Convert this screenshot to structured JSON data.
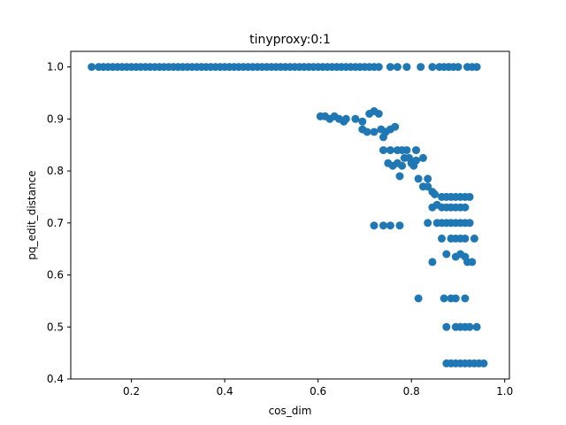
{
  "chart_data": {
    "type": "scatter",
    "title": "tinyproxy:0:1",
    "xlabel": "cos_dim",
    "ylabel": "pq_edit_distance",
    "xlim": [
      0.07,
      1.01
    ],
    "ylim": [
      0.4,
      1.03
    ],
    "xticks": [
      0.2,
      0.4,
      0.6,
      0.8,
      1.0
    ],
    "xtick_labels": [
      "0.2",
      "0.4",
      "0.6",
      "0.8",
      "1.0"
    ],
    "yticks": [
      0.4,
      0.5,
      0.6,
      0.7,
      0.8,
      0.9,
      1.0
    ],
    "ytick_labels": [
      "0.4",
      "0.5",
      "0.6",
      "0.7",
      "0.8",
      "0.9",
      "1.0"
    ],
    "grid": false,
    "legend": false,
    "marker_color": "#1f77b4",
    "series": [
      {
        "points": [
          [
            0.115,
            1.0
          ],
          [
            0.13,
            1.0
          ],
          [
            0.14,
            1.0
          ],
          [
            0.15,
            1.0
          ],
          [
            0.16,
            1.0
          ],
          [
            0.17,
            1.0
          ],
          [
            0.18,
            1.0
          ],
          [
            0.19,
            1.0
          ],
          [
            0.2,
            1.0
          ],
          [
            0.21,
            1.0
          ],
          [
            0.22,
            1.0
          ],
          [
            0.23,
            1.0
          ],
          [
            0.24,
            1.0
          ],
          [
            0.25,
            1.0
          ],
          [
            0.26,
            1.0
          ],
          [
            0.27,
            1.0
          ],
          [
            0.28,
            1.0
          ],
          [
            0.29,
            1.0
          ],
          [
            0.3,
            1.0
          ],
          [
            0.31,
            1.0
          ],
          [
            0.32,
            1.0
          ],
          [
            0.33,
            1.0
          ],
          [
            0.34,
            1.0
          ],
          [
            0.35,
            1.0
          ],
          [
            0.36,
            1.0
          ],
          [
            0.37,
            1.0
          ],
          [
            0.38,
            1.0
          ],
          [
            0.39,
            1.0
          ],
          [
            0.4,
            1.0
          ],
          [
            0.41,
            1.0
          ],
          [
            0.42,
            1.0
          ],
          [
            0.43,
            1.0
          ],
          [
            0.44,
            1.0
          ],
          [
            0.45,
            1.0
          ],
          [
            0.46,
            1.0
          ],
          [
            0.47,
            1.0
          ],
          [
            0.48,
            1.0
          ],
          [
            0.49,
            1.0
          ],
          [
            0.5,
            1.0
          ],
          [
            0.51,
            1.0
          ],
          [
            0.52,
            1.0
          ],
          [
            0.53,
            1.0
          ],
          [
            0.54,
            1.0
          ],
          [
            0.55,
            1.0
          ],
          [
            0.56,
            1.0
          ],
          [
            0.57,
            1.0
          ],
          [
            0.58,
            1.0
          ],
          [
            0.59,
            1.0
          ],
          [
            0.6,
            1.0
          ],
          [
            0.61,
            1.0
          ],
          [
            0.62,
            1.0
          ],
          [
            0.63,
            1.0
          ],
          [
            0.64,
            1.0
          ],
          [
            0.65,
            1.0
          ],
          [
            0.66,
            1.0
          ],
          [
            0.67,
            1.0
          ],
          [
            0.68,
            1.0
          ],
          [
            0.69,
            1.0
          ],
          [
            0.7,
            1.0
          ],
          [
            0.71,
            1.0
          ],
          [
            0.72,
            1.0
          ],
          [
            0.73,
            1.0
          ],
          [
            0.755,
            1.0
          ],
          [
            0.77,
            1.0
          ],
          [
            0.79,
            1.0
          ],
          [
            0.82,
            1.0
          ],
          [
            0.845,
            1.0
          ],
          [
            0.86,
            1.0
          ],
          [
            0.87,
            1.0
          ],
          [
            0.88,
            1.0
          ],
          [
            0.89,
            1.0
          ],
          [
            0.9,
            1.0
          ],
          [
            0.92,
            1.0
          ],
          [
            0.93,
            1.0
          ],
          [
            0.94,
            1.0
          ],
          [
            0.605,
            0.905
          ],
          [
            0.615,
            0.905
          ],
          [
            0.625,
            0.9
          ],
          [
            0.635,
            0.905
          ],
          [
            0.645,
            0.9
          ],
          [
            0.655,
            0.895
          ],
          [
            0.66,
            0.9
          ],
          [
            0.68,
            0.9
          ],
          [
            0.695,
            0.895
          ],
          [
            0.71,
            0.91
          ],
          [
            0.72,
            0.915
          ],
          [
            0.73,
            0.91
          ],
          [
            0.695,
            0.88
          ],
          [
            0.705,
            0.875
          ],
          [
            0.72,
            0.875
          ],
          [
            0.735,
            0.88
          ],
          [
            0.745,
            0.875
          ],
          [
            0.755,
            0.88
          ],
          [
            0.765,
            0.885
          ],
          [
            0.74,
            0.865
          ],
          [
            0.74,
            0.84
          ],
          [
            0.755,
            0.84
          ],
          [
            0.77,
            0.84
          ],
          [
            0.78,
            0.84
          ],
          [
            0.79,
            0.84
          ],
          [
            0.81,
            0.84
          ],
          [
            0.75,
            0.815
          ],
          [
            0.76,
            0.81
          ],
          [
            0.77,
            0.815
          ],
          [
            0.78,
            0.81
          ],
          [
            0.785,
            0.825
          ],
          [
            0.795,
            0.825
          ],
          [
            0.8,
            0.815
          ],
          [
            0.805,
            0.81
          ],
          [
            0.81,
            0.82
          ],
          [
            0.825,
            0.825
          ],
          [
            0.775,
            0.79
          ],
          [
            0.815,
            0.785
          ],
          [
            0.835,
            0.785
          ],
          [
            0.825,
            0.77
          ],
          [
            0.835,
            0.77
          ],
          [
            0.845,
            0.76
          ],
          [
            0.85,
            0.755
          ],
          [
            0.865,
            0.75
          ],
          [
            0.875,
            0.75
          ],
          [
            0.885,
            0.75
          ],
          [
            0.895,
            0.75
          ],
          [
            0.905,
            0.75
          ],
          [
            0.915,
            0.75
          ],
          [
            0.925,
            0.75
          ],
          [
            0.845,
            0.73
          ],
          [
            0.855,
            0.735
          ],
          [
            0.865,
            0.73
          ],
          [
            0.875,
            0.73
          ],
          [
            0.885,
            0.73
          ],
          [
            0.895,
            0.73
          ],
          [
            0.905,
            0.73
          ],
          [
            0.915,
            0.73
          ],
          [
            0.72,
            0.695
          ],
          [
            0.74,
            0.695
          ],
          [
            0.755,
            0.695
          ],
          [
            0.775,
            0.695
          ],
          [
            0.835,
            0.7
          ],
          [
            0.855,
            0.7
          ],
          [
            0.865,
            0.7
          ],
          [
            0.875,
            0.7
          ],
          [
            0.885,
            0.7
          ],
          [
            0.895,
            0.7
          ],
          [
            0.905,
            0.7
          ],
          [
            0.915,
            0.7
          ],
          [
            0.925,
            0.7
          ],
          [
            0.865,
            0.67
          ],
          [
            0.885,
            0.67
          ],
          [
            0.895,
            0.67
          ],
          [
            0.905,
            0.67
          ],
          [
            0.915,
            0.67
          ],
          [
            0.935,
            0.67
          ],
          [
            0.875,
            0.64
          ],
          [
            0.895,
            0.635
          ],
          [
            0.905,
            0.64
          ],
          [
            0.915,
            0.635
          ],
          [
            0.92,
            0.625
          ],
          [
            0.93,
            0.625
          ],
          [
            0.845,
            0.625
          ],
          [
            0.815,
            0.555
          ],
          [
            0.87,
            0.555
          ],
          [
            0.885,
            0.555
          ],
          [
            0.895,
            0.555
          ],
          [
            0.915,
            0.555
          ],
          [
            0.875,
            0.5
          ],
          [
            0.895,
            0.5
          ],
          [
            0.905,
            0.5
          ],
          [
            0.915,
            0.5
          ],
          [
            0.925,
            0.5
          ],
          [
            0.94,
            0.5
          ],
          [
            0.875,
            0.43
          ],
          [
            0.885,
            0.43
          ],
          [
            0.895,
            0.43
          ],
          [
            0.905,
            0.43
          ],
          [
            0.915,
            0.43
          ],
          [
            0.925,
            0.43
          ],
          [
            0.935,
            0.43
          ],
          [
            0.945,
            0.43
          ],
          [
            0.955,
            0.43
          ]
        ]
      }
    ]
  }
}
